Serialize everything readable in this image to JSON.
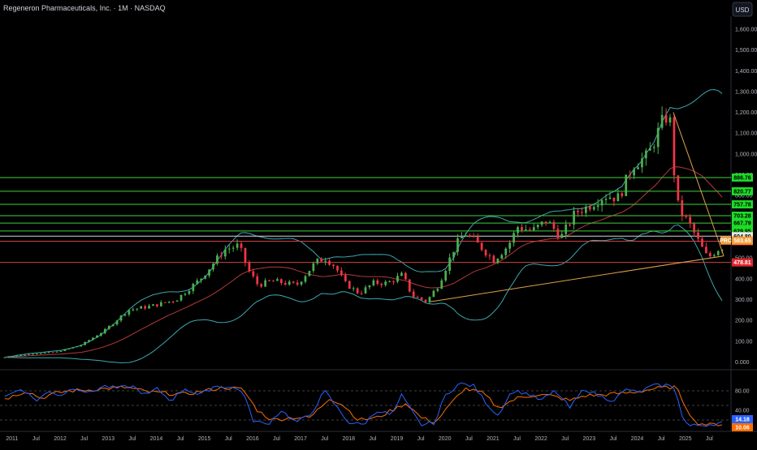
{
  "header": {
    "title": "Regeneron Pharmaceuticals, Inc. · 1M · NASDAQ",
    "currency": "USD"
  },
  "colors": {
    "background": "#000000",
    "up": "#4caf50",
    "down": "#f23645",
    "upper_band": "#3ba8b0",
    "lower_band": "#3ba8b0",
    "basis": "#b23a3a",
    "support_green": "#3ecf3e",
    "support_red": "#d04040",
    "trendline": "#e0a04a",
    "stoch_k": "#2962ff",
    "stoch_d": "#ff6d00"
  },
  "chart_data": {
    "type": "candlestick",
    "title": "Regeneron Pharmaceuticals, Inc. · 1M · NASDAQ",
    "currency": "USD",
    "ylim": [
      -50,
      1700
    ],
    "y_ticks": [
      "1,600.00",
      "1,500.00",
      "1,400.00",
      "1,300.00",
      "1,200.00",
      "1,100.00",
      "1,000.00",
      "900.00",
      "800.00",
      "700.00",
      "600.00",
      "500.00",
      "400.00",
      "300.00",
      "200.00",
      "100.00",
      "0.000"
    ],
    "x_labels": [
      "2011",
      "Jul",
      "2012",
      "Jul",
      "2013",
      "Jul",
      "2014",
      "Jul",
      "2015",
      "Jul",
      "2016",
      "Jul",
      "2017",
      "Jul",
      "2018",
      "Jul",
      "2019",
      "Jul",
      "2020",
      "Jul",
      "2021",
      "Jul",
      "2022",
      "Jul",
      "2023",
      "Jul",
      "2024",
      "Jul",
      "2025",
      "Jul"
    ],
    "x_label_years": [
      2011,
      2011.5,
      2012,
      2012.5,
      2013,
      2013.5,
      2014,
      2014.5,
      2015,
      2015.5,
      2016,
      2016.5,
      2017,
      2017.5,
      2018,
      2018.5,
      2019,
      2019.5,
      2020,
      2020.5,
      2021,
      2021.5,
      2022,
      2022.5,
      2023,
      2023.5,
      2024,
      2024.5,
      2025,
      2025.5
    ],
    "price_series": {
      "start": "2010-11",
      "interval": "1M",
      "anchors": [
        [
          2010.9,
          22
        ],
        [
          2011.5,
          40
        ],
        [
          2012.0,
          48
        ],
        [
          2012.5,
          80
        ],
        [
          2013.0,
          150
        ],
        [
          2013.5,
          250
        ],
        [
          2014.0,
          270
        ],
        [
          2014.5,
          300
        ],
        [
          2015.0,
          400
        ],
        [
          2015.5,
          540
        ],
        [
          2015.8,
          560
        ],
        [
          2016.0,
          440
        ],
        [
          2016.2,
          370
        ],
        [
          2016.5,
          390
        ],
        [
          2017.0,
          370
        ],
        [
          2017.4,
          480
        ],
        [
          2017.6,
          500
        ],
        [
          2017.8,
          460
        ],
        [
          2018.0,
          380
        ],
        [
          2018.3,
          330
        ],
        [
          2018.6,
          380
        ],
        [
          2018.9,
          380
        ],
        [
          2019.2,
          420
        ],
        [
          2019.4,
          320
        ],
        [
          2019.7,
          290
        ],
        [
          2019.95,
          370
        ],
        [
          2020.3,
          560
        ],
        [
          2020.5,
          620
        ],
        [
          2020.8,
          560
        ],
        [
          2021.1,
          490
        ],
        [
          2021.4,
          560
        ],
        [
          2021.6,
          650
        ],
        [
          2021.9,
          630
        ],
        [
          2022.2,
          680
        ],
        [
          2022.5,
          600
        ],
        [
          2022.8,
          720
        ],
        [
          2023.0,
          740
        ],
        [
          2023.4,
          800
        ],
        [
          2023.7,
          790
        ],
        [
          2024.0,
          950
        ],
        [
          2024.3,
          990
        ],
        [
          2024.6,
          1150
        ],
        [
          2024.75,
          1200
        ],
        [
          2024.9,
          770
        ],
        [
          2025.0,
          720
        ],
        [
          2025.2,
          650
        ],
        [
          2025.4,
          560
        ],
        [
          2025.55,
          500
        ],
        [
          2025.8,
          550
        ]
      ]
    },
    "horizontal_levels": [
      {
        "value": 886.76,
        "label": "886.76",
        "color": "green"
      },
      {
        "value": 820.77,
        "label": "820.77",
        "color": "green"
      },
      {
        "value": 757.78,
        "label": "757.78",
        "color": "green"
      },
      {
        "value": 703.28,
        "label": "703.28",
        "color": "green"
      },
      {
        "value": 667.79,
        "label": "667.79",
        "color": "green"
      },
      {
        "value": 629.95,
        "label": "629.95",
        "color": "green"
      },
      {
        "value": 604.8,
        "label": "604.80",
        "color": "white"
      },
      {
        "value": 580.7,
        "label": "580.70",
        "color": "red"
      },
      {
        "value": 478.81,
        "label": "478.81",
        "color": "red"
      }
    ],
    "price_tag": {
      "prefix": "PRC",
      "value": "583.65"
    },
    "trendlines": [
      {
        "from": [
          2019.7,
          290
        ],
        "to": [
          2025.8,
          510
        ]
      },
      {
        "from": [
          2024.75,
          1200
        ],
        "to": [
          2025.8,
          510
        ]
      }
    ],
    "oscillator": {
      "ticks": [
        "80.00",
        "40.00"
      ],
      "k_label": "14.18",
      "d_label": "10.06",
      "k_anchors": [
        [
          2010.9,
          70
        ],
        [
          2011.2,
          85
        ],
        [
          2011.5,
          60
        ],
        [
          2011.8,
          80
        ],
        [
          2012.0,
          70
        ],
        [
          2012.3,
          88
        ],
        [
          2012.6,
          75
        ],
        [
          2012.9,
          90
        ],
        [
          2013.2,
          85
        ],
        [
          2013.5,
          90
        ],
        [
          2013.8,
          70
        ],
        [
          2014.0,
          85
        ],
        [
          2014.3,
          60
        ],
        [
          2014.6,
          85
        ],
        [
          2014.9,
          70
        ],
        [
          2015.2,
          90
        ],
        [
          2015.5,
          88
        ],
        [
          2015.8,
          80
        ],
        [
          2016.0,
          20
        ],
        [
          2016.3,
          10
        ],
        [
          2016.6,
          40
        ],
        [
          2016.9,
          15
        ],
        [
          2017.2,
          30
        ],
        [
          2017.5,
          80
        ],
        [
          2017.8,
          40
        ],
        [
          2018.0,
          15
        ],
        [
          2018.3,
          10
        ],
        [
          2018.6,
          40
        ],
        [
          2018.9,
          30
        ],
        [
          2019.1,
          70
        ],
        [
          2019.3,
          40
        ],
        [
          2019.5,
          10
        ],
        [
          2019.8,
          15
        ],
        [
          2020.0,
          70
        ],
        [
          2020.3,
          95
        ],
        [
          2020.6,
          90
        ],
        [
          2020.9,
          50
        ],
        [
          2021.1,
          30
        ],
        [
          2021.4,
          80
        ],
        [
          2021.7,
          75
        ],
        [
          2022.0,
          60
        ],
        [
          2022.3,
          80
        ],
        [
          2022.6,
          45
        ],
        [
          2022.9,
          85
        ],
        [
          2023.2,
          70
        ],
        [
          2023.5,
          60
        ],
        [
          2023.8,
          85
        ],
        [
          2024.0,
          75
        ],
        [
          2024.3,
          90
        ],
        [
          2024.6,
          92
        ],
        [
          2024.8,
          85
        ],
        [
          2024.95,
          20
        ],
        [
          2025.1,
          8
        ],
        [
          2025.4,
          10
        ],
        [
          2025.6,
          12
        ],
        [
          2025.8,
          15
        ]
      ],
      "d_anchors": [
        [
          2010.9,
          65
        ],
        [
          2011.3,
          80
        ],
        [
          2011.6,
          65
        ],
        [
          2011.9,
          75
        ],
        [
          2012.2,
          80
        ],
        [
          2012.6,
          82
        ],
        [
          2013.0,
          85
        ],
        [
          2013.4,
          87
        ],
        [
          2013.8,
          78
        ],
        [
          2014.2,
          75
        ],
        [
          2014.6,
          73
        ],
        [
          2015.0,
          80
        ],
        [
          2015.4,
          87
        ],
        [
          2015.8,
          83
        ],
        [
          2016.1,
          40
        ],
        [
          2016.4,
          20
        ],
        [
          2016.8,
          25
        ],
        [
          2017.2,
          25
        ],
        [
          2017.6,
          65
        ],
        [
          2017.9,
          50
        ],
        [
          2018.2,
          20
        ],
        [
          2018.6,
          25
        ],
        [
          2018.9,
          40
        ],
        [
          2019.2,
          55
        ],
        [
          2019.5,
          25
        ],
        [
          2019.8,
          15
        ],
        [
          2020.1,
          50
        ],
        [
          2020.4,
          85
        ],
        [
          2020.8,
          75
        ],
        [
          2021.1,
          45
        ],
        [
          2021.5,
          65
        ],
        [
          2021.9,
          72
        ],
        [
          2022.2,
          70
        ],
        [
          2022.6,
          60
        ],
        [
          2022.9,
          70
        ],
        [
          2023.3,
          72
        ],
        [
          2023.7,
          75
        ],
        [
          2024.0,
          78
        ],
        [
          2024.4,
          85
        ],
        [
          2024.8,
          88
        ],
        [
          2025.0,
          50
        ],
        [
          2025.2,
          15
        ],
        [
          2025.5,
          10
        ],
        [
          2025.8,
          12
        ]
      ]
    }
  }
}
